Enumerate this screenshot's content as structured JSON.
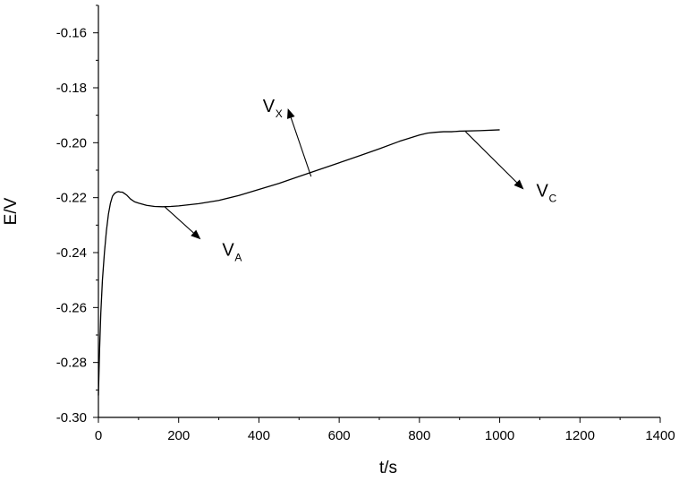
{
  "chart_data": {
    "type": "line",
    "title": "",
    "xlabel": "t/s",
    "ylabel": "E/V",
    "xlim": [
      0,
      1400
    ],
    "ylim": [
      -0.3,
      -0.15
    ],
    "grid": false,
    "legend": "none",
    "x_ticks": [
      0,
      200,
      400,
      600,
      800,
      1000,
      1200,
      1400
    ],
    "x_tick_labels": [
      "0",
      "200",
      "400",
      "600",
      "800",
      "1000",
      "1200",
      "1400"
    ],
    "y_ticks": [
      -0.3,
      -0.28,
      -0.26,
      -0.24,
      -0.22,
      -0.2,
      -0.18,
      -0.16
    ],
    "y_tick_labels": [
      "-0.30",
      "-0.28",
      "-0.26",
      "-0.24",
      "-0.22",
      "-0.20",
      "-0.18",
      "-0.16"
    ],
    "series": [
      {
        "color": "#000000",
        "x": [
          0,
          3,
          6,
          10,
          15,
          20,
          25,
          30,
          35,
          40,
          45,
          50,
          55,
          60,
          65,
          70,
          80,
          90,
          100,
          120,
          140,
          160,
          180,
          200,
          250,
          300,
          350,
          400,
          450,
          500,
          550,
          600,
          650,
          700,
          750,
          800,
          820,
          840,
          860,
          880,
          900,
          950,
          1000
        ],
        "y": [
          -0.292,
          -0.275,
          -0.262,
          -0.25,
          -0.24,
          -0.232,
          -0.226,
          -0.222,
          -0.2195,
          -0.2185,
          -0.218,
          -0.2178,
          -0.218,
          -0.218,
          -0.2185,
          -0.219,
          -0.2205,
          -0.2215,
          -0.222,
          -0.2228,
          -0.2232,
          -0.2233,
          -0.2232,
          -0.223,
          -0.2222,
          -0.221,
          -0.2192,
          -0.217,
          -0.2148,
          -0.2123,
          -0.2098,
          -0.2073,
          -0.2048,
          -0.2022,
          -0.1995,
          -0.1972,
          -0.1965,
          -0.1962,
          -0.196,
          -0.196,
          -0.1958,
          -0.1956,
          -0.1953
        ]
      }
    ],
    "annotations": [
      {
        "label": "V",
        "sub": "A",
        "from": [
          165,
          -0.2233
        ],
        "to": [
          255,
          -0.2352
        ]
      },
      {
        "label": "V",
        "sub": "X",
        "from": [
          530,
          -0.2123
        ],
        "to": [
          472,
          -0.1875
        ]
      },
      {
        "label": "V",
        "sub": "C",
        "from": [
          915,
          -0.196
        ],
        "to": [
          1060,
          -0.217
        ]
      }
    ]
  }
}
